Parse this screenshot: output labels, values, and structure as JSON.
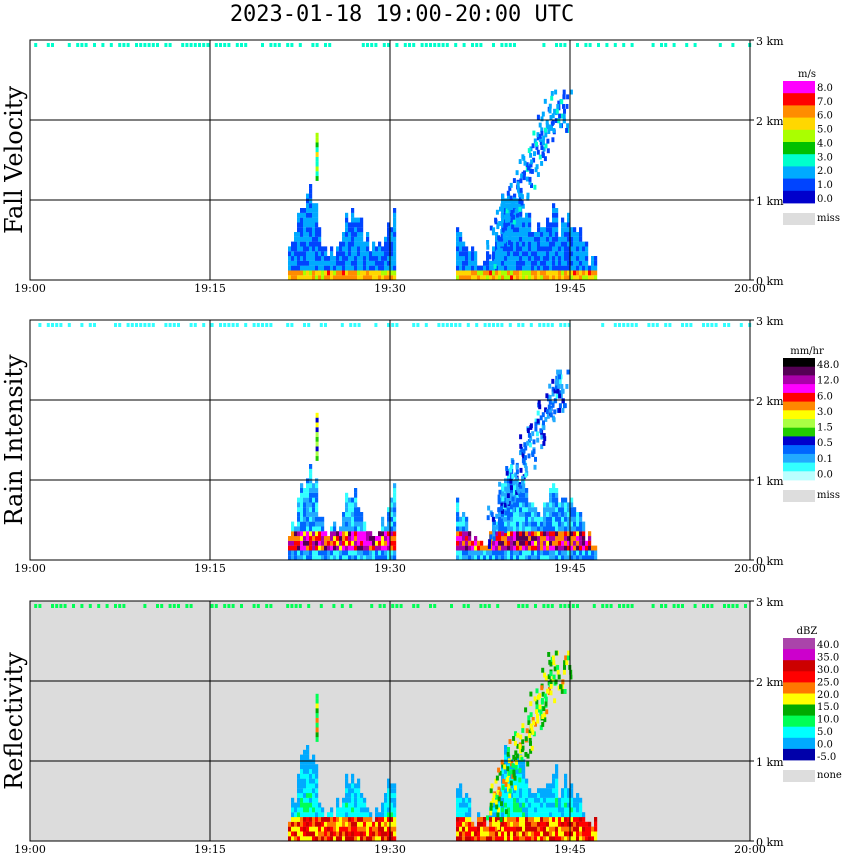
{
  "title": "2023-01-18   19:00-20:00 UTC",
  "x_ticks": [
    "19:00",
    "19:15",
    "19:30",
    "19:45",
    "20:00"
  ],
  "y_ticks": [
    "0 km",
    "1 km",
    "2 km",
    "3 km"
  ],
  "chart_data": [
    {
      "type": "heatmap",
      "ylabel": "Fall Velocity",
      "x": {
        "start": "19:00",
        "end": "20:00"
      },
      "y": {
        "min": 0,
        "max": 3,
        "unit": "km"
      },
      "colorbar": {
        "unit": "m/s",
        "labels": [
          "8.0",
          "7.0",
          "6.0",
          "5.0",
          "4.0",
          "3.0",
          "2.0",
          "1.0",
          "0.0"
        ],
        "colors": [
          "#ff00ff",
          "#ff0000",
          "#ff8c00",
          "#ffd700",
          "#aaff00",
          "#00c000",
          "#00ffcc",
          "#00aaff",
          "#0044ff",
          "#0000cc"
        ],
        "miss_label": "miss",
        "miss_color": "#dddddd"
      }
    },
    {
      "type": "heatmap",
      "ylabel": "Rain Intensity",
      "x": {
        "start": "19:00",
        "end": "20:00"
      },
      "y": {
        "min": 0,
        "max": 3,
        "unit": "km"
      },
      "colorbar": {
        "unit": "mm/hr",
        "labels": [
          "48.0",
          "12.0",
          "6.0",
          "3.0",
          "1.5",
          "0.5",
          "0.1",
          "0.0"
        ],
        "colors": [
          "#000000",
          "#550055",
          "#aa00aa",
          "#ff00ff",
          "#ff0000",
          "#ff8800",
          "#ffff00",
          "#aaff44",
          "#22cc00",
          "#0000cc",
          "#0066ff",
          "#22aaff",
          "#33ffff",
          "#bbffff"
        ],
        "miss_label": "miss",
        "miss_color": "#dddddd"
      }
    },
    {
      "type": "heatmap",
      "ylabel": "Reflectivity",
      "x": {
        "start": "19:00",
        "end": "20:00"
      },
      "y": {
        "min": 0,
        "max": 3,
        "unit": "km"
      },
      "colorbar": {
        "unit": "dBZ",
        "labels": [
          "40.0",
          "35.0",
          "30.0",
          "25.0",
          "20.0",
          "15.0",
          "10.0",
          "5.0",
          "0.0",
          "-5.0"
        ],
        "colors": [
          "#aa44aa",
          "#cc00cc",
          "#cc0000",
          "#ff0000",
          "#ff7700",
          "#ffff00",
          "#00aa00",
          "#00ff55",
          "#00ffff",
          "#00aaff",
          "#0000aa"
        ],
        "miss_label": "none",
        "miss_color": "#dddddd"
      }
    }
  ]
}
